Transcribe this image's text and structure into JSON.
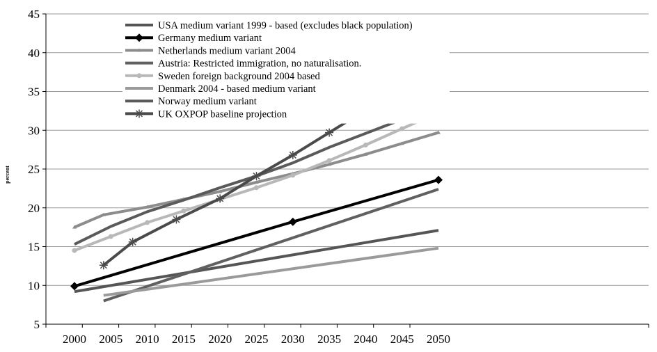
{
  "chart_data": {
    "type": "line",
    "title": "",
    "xlabel": "",
    "ylabel": "percent",
    "x": [
      2000,
      2005,
      2010,
      2015,
      2020,
      2025,
      2030,
      2035,
      2040,
      2045,
      2050
    ],
    "ylim": [
      5,
      45
    ],
    "yticks": [
      5,
      10,
      15,
      20,
      25,
      30,
      35,
      40,
      45
    ],
    "grid": "horizontal",
    "legend_position": "top-left",
    "series": [
      {
        "name": "USA medium variant 1999 - based (excludes black population)",
        "color": "#555555",
        "marker": "none",
        "points": [
          [
            2000,
            9.2
          ],
          [
            2050,
            17.1
          ]
        ]
      },
      {
        "name": "Germany medium variant",
        "color": "#000000",
        "marker": "diamond",
        "points": [
          [
            2000,
            9.9
          ],
          [
            2030,
            18.2
          ],
          [
            2050,
            23.6
          ]
        ]
      },
      {
        "name": "Netherlands medium variant 2004",
        "color": "#8c8c8c",
        "marker": "triangle",
        "points": [
          [
            2000,
            17.5
          ],
          [
            2004,
            19.1
          ],
          [
            2010,
            20.1
          ],
          [
            2015,
            21.1
          ],
          [
            2020,
            22.1
          ],
          [
            2025,
            23.3
          ],
          [
            2030,
            24.4
          ],
          [
            2035,
            25.6
          ],
          [
            2040,
            26.9
          ],
          [
            2045,
            28.3
          ],
          [
            2050,
            29.7
          ]
        ]
      },
      {
        "name": "Austria: Restricted immigration,  no naturalisation.",
        "color": "#606060",
        "marker": "none",
        "points": [
          [
            2004,
            8.0
          ],
          [
            2050,
            22.4
          ]
        ]
      },
      {
        "name": "Sweden foreign background 2004 based",
        "color": "#b8b8b8",
        "marker": "circle",
        "points": [
          [
            2000,
            14.5
          ],
          [
            2005,
            16.3
          ],
          [
            2010,
            18.1
          ],
          [
            2015,
            19.6
          ],
          [
            2020,
            21.1
          ],
          [
            2025,
            22.6
          ],
          [
            2030,
            24.2
          ],
          [
            2035,
            26.1
          ],
          [
            2040,
            28.1
          ],
          [
            2045,
            30.2
          ],
          [
            2050,
            32.3
          ]
        ]
      },
      {
        "name": "Denmark 2004 - based medium variant",
        "color": "#9a9a9a",
        "marker": "none",
        "points": [
          [
            2004,
            8.7
          ],
          [
            2050,
            14.8
          ]
        ]
      },
      {
        "name": "Norway medium variant",
        "color": "#5a5a5a",
        "marker": "none",
        "points": [
          [
            2000,
            15.3
          ],
          [
            2005,
            17.6
          ],
          [
            2010,
            19.5
          ],
          [
            2015,
            21.0
          ],
          [
            2020,
            22.6
          ],
          [
            2025,
            24.1
          ],
          [
            2030,
            25.8
          ],
          [
            2035,
            27.8
          ],
          [
            2040,
            29.6
          ],
          [
            2045,
            31.4
          ],
          [
            2050,
            33.2
          ]
        ]
      },
      {
        "name": "UK OXPOP baseline projection",
        "color": "#4a4a4a",
        "marker": "star",
        "points": [
          [
            2004,
            12.6
          ],
          [
            2008,
            15.6
          ],
          [
            2014,
            18.5
          ],
          [
            2020,
            21.2
          ],
          [
            2025,
            24.1
          ],
          [
            2030,
            26.8
          ],
          [
            2035,
            29.7
          ],
          [
            2040,
            32.6
          ],
          [
            2045,
            35.6
          ],
          [
            2050,
            38.5
          ]
        ]
      }
    ]
  }
}
